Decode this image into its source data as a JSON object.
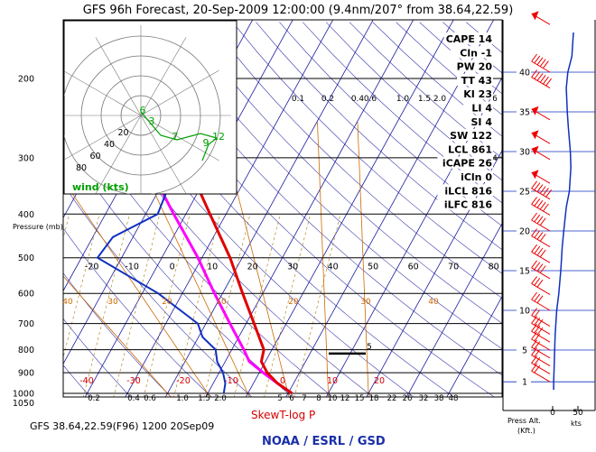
{
  "chart_data": {
    "type": "skewt",
    "title": "GFS 96h Forecast, 20-Sep-2009 12:00:00 (9.4nm/207° from 38.64,22.59)",
    "footer_left": "GFS 38.64,22.59(F96) 1200 20Sep09",
    "footer_center": "NOAA / ESRL / GSD",
    "skewt_label": "SkewT-log P",
    "ylabel": "Pressure (mb)",
    "pressure_ticks": [
      "200",
      "300",
      "400",
      "500",
      "600",
      "700",
      "800",
      "900",
      "1000",
      "1050"
    ],
    "temp_ticks_top": [
      "-20",
      "-10",
      "0",
      "10",
      "20",
      "30",
      "40",
      "50",
      "60",
      "70",
      "80"
    ],
    "temp_ticks_bottom": [
      "-40",
      "-30",
      "-20",
      "-10",
      "0",
      "10",
      "20"
    ],
    "mixing_ratio_labels": [
      "0.1",
      "0.2",
      "0.4",
      "0.6",
      "1.0",
      "1.5",
      "2.0"
    ],
    "mixing_ratio_labels_bottom": [
      "0.2",
      "0.4",
      "0.6",
      "1.0",
      "1.5",
      "2.0",
      "5",
      "6",
      "7",
      "8",
      "10",
      "12",
      "15",
      "18",
      "22",
      "26",
      "32",
      "38",
      "48"
    ],
    "mixing_ratio_labels_mid": [
      "4",
      "6",
      "5"
    ],
    "theta_labels": [
      "40",
      "30",
      "20",
      "10",
      "20",
      "30",
      "40"
    ],
    "temperature_profile": [
      {
        "p": 1000,
        "t": 21
      },
      {
        "p": 950,
        "t": 16
      },
      {
        "p": 900,
        "t": 12
      },
      {
        "p": 850,
        "t": 9
      },
      {
        "p": 800,
        "t": 8
      },
      {
        "p": 700,
        "t": 2
      },
      {
        "p": 600,
        "t": -5
      },
      {
        "p": 500,
        "t": -13
      },
      {
        "p": 400,
        "t": -24
      },
      {
        "p": 300,
        "t": -38
      },
      {
        "p": 250,
        "t": -48
      },
      {
        "p": 200,
        "t": -55
      },
      {
        "p": 150,
        "t": -60
      }
    ],
    "dewpoint_profile": [
      {
        "p": 1000,
        "t": 4
      },
      {
        "p": 950,
        "t": 3
      },
      {
        "p": 900,
        "t": 1
      },
      {
        "p": 850,
        "t": -2
      },
      {
        "p": 800,
        "t": -4
      },
      {
        "p": 750,
        "t": -9
      },
      {
        "p": 700,
        "t": -12
      },
      {
        "p": 600,
        "t": -26
      },
      {
        "p": 500,
        "t": -46
      },
      {
        "p": 450,
        "t": -45
      },
      {
        "p": 400,
        "t": -37
      },
      {
        "p": 350,
        "t": -38
      },
      {
        "p": 300,
        "t": -49
      },
      {
        "p": 250,
        "t": -57
      },
      {
        "p": 200,
        "t": -76
      },
      {
        "p": 150,
        "t": -88
      }
    ],
    "parcel_profile": [
      {
        "p": 1000,
        "t": 21
      },
      {
        "p": 950,
        "t": 16
      },
      {
        "p": 900,
        "t": 11
      },
      {
        "p": 850,
        "t": 6
      },
      {
        "p": 800,
        "t": 3
      },
      {
        "p": 700,
        "t": -4
      },
      {
        "p": 600,
        "t": -12
      },
      {
        "p": 500,
        "t": -21
      },
      {
        "p": 400,
        "t": -33
      },
      {
        "p": 300,
        "t": -48
      },
      {
        "p": 200,
        "t": -68
      },
      {
        "p": 150,
        "t": -82
      }
    ],
    "lcl_level_mb": 816,
    "indices": [
      "CAPE 14",
      "Cln -1",
      "PW 20",
      "TT 43",
      "KI 23",
      "LI 4",
      "SI 4",
      "SW 122",
      "LCL 861",
      "iCAPE 26",
      "iCln 0",
      "iLCL 816",
      "iLFC 816"
    ],
    "hodograph": {
      "label": "wind (kts)",
      "ring_labels": [
        "20",
        "40",
        "60",
        "80"
      ],
      "point_labels": [
        "6",
        "3",
        "7",
        "9",
        "12"
      ]
    },
    "altitude_axis": {
      "label_line1": "Press Alt.",
      "label_line2": "(Kft.)",
      "ticks": [
        "1",
        "5",
        "10",
        "15",
        "20",
        "25",
        "30",
        "35",
        "40"
      ]
    },
    "speed_axis": {
      "label": "kts",
      "ticks": [
        "0",
        "50"
      ],
      "profile_kft_kts": [
        [
          0,
          2
        ],
        [
          1,
          2
        ],
        [
          3,
          3
        ],
        [
          5,
          4
        ],
        [
          7,
          5
        ],
        [
          10,
          8
        ],
        [
          12,
          12
        ],
        [
          15,
          16
        ],
        [
          18,
          19
        ],
        [
          20,
          22
        ],
        [
          23,
          27
        ],
        [
          25,
          33
        ],
        [
          28,
          36
        ],
        [
          30,
          35
        ],
        [
          33,
          31
        ],
        [
          35,
          29
        ],
        [
          38,
          27
        ],
        [
          40,
          30
        ],
        [
          42,
          38
        ],
        [
          45,
          41
        ]
      ]
    },
    "barbs_kft": [
      {
        "alt": 1,
        "n": 2
      },
      {
        "alt": 2,
        "n": 2
      },
      {
        "alt": 3,
        "n": 2
      },
      {
        "alt": 4,
        "n": 2
      },
      {
        "alt": 5,
        "n": 2
      },
      {
        "alt": 6,
        "n": 3
      },
      {
        "alt": 7,
        "n": 3
      },
      {
        "alt": 8,
        "n": 2
      },
      {
        "alt": 10,
        "n": 3
      },
      {
        "alt": 12,
        "n": 3
      },
      {
        "alt": 14,
        "n": 4
      },
      {
        "alt": 16,
        "n": 4
      },
      {
        "alt": 18,
        "n": 4
      },
      {
        "alt": 20,
        "n": 4
      },
      {
        "alt": 22,
        "n": 5
      },
      {
        "alt": 24,
        "n": 6
      },
      {
        "alt": 26,
        "n": 0,
        "flag": true
      },
      {
        "alt": 29,
        "n": 0,
        "flag": true
      },
      {
        "alt": 31,
        "n": 0,
        "flag": true
      },
      {
        "alt": 34,
        "n": 0,
        "flag": true
      },
      {
        "alt": 38,
        "n": 6
      },
      {
        "alt": 40,
        "n": 5
      },
      {
        "alt": 46,
        "n": 0,
        "flag": true
      }
    ],
    "colors": {
      "temperature": "#e00000",
      "dewpoint": "#1030c0",
      "parcel": "#ff00ff",
      "isotherm": "#1a1aa0",
      "dry_adiabat": "#cc6a00",
      "mixing_ratio": "#aa7700",
      "hodograph": "#00a000",
      "barbs": "#ee0000"
    }
  }
}
